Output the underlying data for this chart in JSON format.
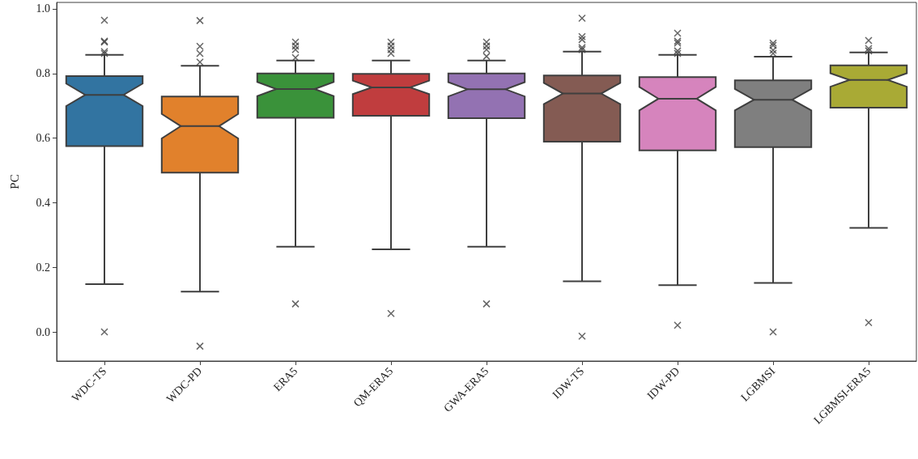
{
  "chart_data": {
    "type": "box",
    "ylabel": "PC",
    "categories": [
      "WDC-TS",
      "WDC-PD",
      "ERA5",
      "QM-ERA5",
      "GWA-ERA5",
      "IDW-TS",
      "IDW-PD",
      "LGBMSI",
      "LGBMSI-ERA5"
    ],
    "colors": [
      "#3274a1",
      "#e1812c",
      "#3a923a",
      "#c03d3e",
      "#9372b2",
      "#845b53",
      "#d684bd",
      "#7f7f7f",
      "#a9aa35"
    ],
    "boxes": [
      {
        "low": 0.148,
        "q1": 0.575,
        "median": 0.734,
        "q3": 0.792,
        "high": 0.858,
        "outliers": [
          0.965,
          0.9,
          0.897,
          0.868,
          0.862,
          0.0
        ]
      },
      {
        "low": 0.125,
        "q1": 0.493,
        "median": 0.637,
        "q3": 0.729,
        "high": 0.824,
        "outliers": [
          0.964,
          0.884,
          0.862,
          0.835,
          -0.044
        ]
      },
      {
        "low": 0.264,
        "q1": 0.663,
        "median": 0.752,
        "q3": 0.8,
        "high": 0.84,
        "outliers": [
          0.897,
          0.885,
          0.874,
          0.849,
          0.087
        ]
      },
      {
        "low": 0.256,
        "q1": 0.669,
        "median": 0.757,
        "q3": 0.799,
        "high": 0.84,
        "outliers": [
          0.897,
          0.885,
          0.874,
          0.862,
          0.057
        ]
      },
      {
        "low": 0.264,
        "q1": 0.662,
        "median": 0.751,
        "q3": 0.8,
        "high": 0.84,
        "outliers": [
          0.897,
          0.885,
          0.874,
          0.853,
          0.087
        ]
      },
      {
        "low": 0.157,
        "q1": 0.589,
        "median": 0.738,
        "q3": 0.794,
        "high": 0.868,
        "outliers": [
          0.971,
          0.914,
          0.905,
          0.88,
          0.874,
          -0.013
        ]
      },
      {
        "low": 0.145,
        "q1": 0.562,
        "median": 0.722,
        "q3": 0.789,
        "high": 0.858,
        "outliers": [
          0.925,
          0.9,
          0.894,
          0.87,
          0.862,
          0.021
        ]
      },
      {
        "low": 0.152,
        "q1": 0.572,
        "median": 0.719,
        "q3": 0.779,
        "high": 0.852,
        "outliers": [
          0.894,
          0.887,
          0.872,
          0.862,
          0.0
        ]
      },
      {
        "low": 0.322,
        "q1": 0.694,
        "median": 0.78,
        "q3": 0.825,
        "high": 0.865,
        "outliers": [
          0.902,
          0.877,
          0.87,
          0.029
        ]
      }
    ],
    "ylim": [
      -0.09,
      1.02
    ],
    "yticks": [
      {
        "value": 0,
        "label": "0.0"
      },
      {
        "value": 0.2,
        "label": "0.2"
      },
      {
        "value": 0.4,
        "label": "0.4"
      },
      {
        "value": 0.6,
        "label": "0.6"
      },
      {
        "value": 0.8,
        "label": "0.8"
      },
      {
        "value": 1,
        "label": "1.0"
      }
    ],
    "grid": false
  }
}
